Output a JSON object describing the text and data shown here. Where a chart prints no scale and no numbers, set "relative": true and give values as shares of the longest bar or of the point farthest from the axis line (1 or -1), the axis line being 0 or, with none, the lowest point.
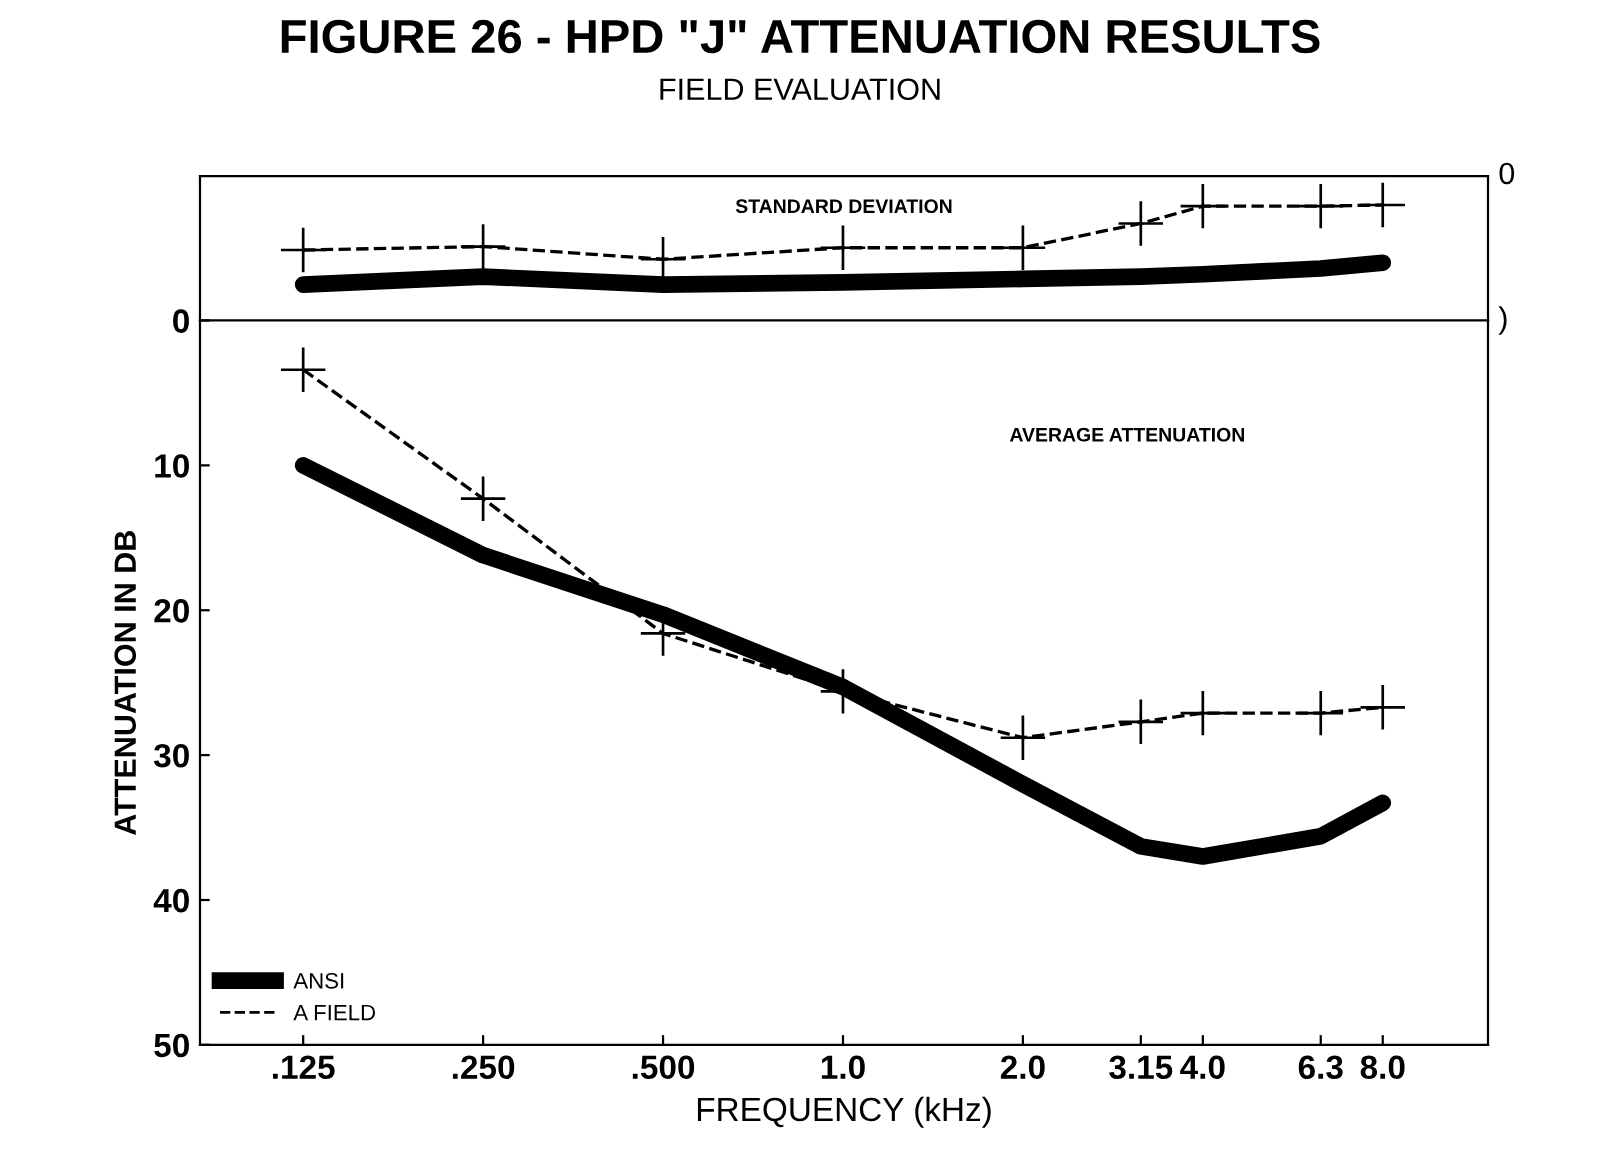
{
  "chart_data": [
    {
      "type": "line",
      "title": "FIGURE 26 - HPD \"J\" ATTENUATION RESULTS",
      "subtitle": "FIELD EVALUATION",
      "annotations": [
        "STANDARD DEVIATION",
        "0",
        ")"
      ],
      "x": [
        0.125,
        0.25,
        0.5,
        1.0,
        2.0,
        3.15,
        4.0,
        6.3,
        8.0
      ],
      "relative": true,
      "series": [
        {
          "color": "#000000",
          "line_style": "solid",
          "marker": "none",
          "values": [
            0.31,
            0.38,
            0.31,
            0.33,
            0.36,
            0.38,
            0.4,
            0.45,
            0.5
          ]
        },
        {
          "color": "#000000",
          "line_style": "dashed",
          "marker": "cross",
          "values": [
            0.61,
            0.64,
            0.53,
            0.63,
            0.63,
            0.84,
            0.99,
            0.99,
            1
          ]
        }
      ],
      "xlim": [
        0.084,
        12
      ],
      "log": "x",
      "grid": false,
      "legend": false
    },
    {
      "type": "line",
      "annotations": [
        "AVERAGE ATTENUATION"
      ],
      "xlabel": "FREQUENCY (kHz)",
      "ylabel": "ATTENUATION IN DB",
      "x": [
        0.125,
        0.25,
        0.5,
        1.0,
        2.0,
        3.15,
        4.0,
        6.3,
        8.0
      ],
      "series": [
        {
          "name": "ANSI",
          "color": "#000000",
          "line_style": "solid",
          "marker": "none",
          "values": [
            10,
            16.2,
            20.3,
            25.3,
            32,
            36.3,
            37,
            35.6,
            33.3
          ]
        },
        {
          "name": "A FIELD",
          "color": "#000000",
          "line_style": "dashed",
          "marker": "cross",
          "values": [
            3.4,
            12.3,
            21.6,
            25.6,
            28.8,
            27.7,
            27.1,
            27.1,
            26.7
          ]
        }
      ],
      "xlim": [
        0.084,
        12
      ],
      "log": "x",
      "ylim": [
        50,
        0
      ],
      "yticks": [
        0,
        10,
        20,
        30,
        40,
        50
      ],
      "xticks": [
        {
          "value": 0.125,
          "label": ".125"
        },
        {
          "value": 0.25,
          "label": ".250"
        },
        {
          "value": 0.5,
          "label": ".500"
        },
        {
          "value": 1.0,
          "label": "1.0"
        },
        {
          "value": 2.0,
          "label": "2.0"
        },
        {
          "value": 3.15,
          "label": "3.15"
        },
        {
          "value": 4.0,
          "label": "4.0"
        },
        {
          "value": 6.3,
          "label": "6.3"
        },
        {
          "value": 8.0,
          "label": "8.0"
        }
      ],
      "grid": false,
      "legend": "bottom left"
    }
  ]
}
